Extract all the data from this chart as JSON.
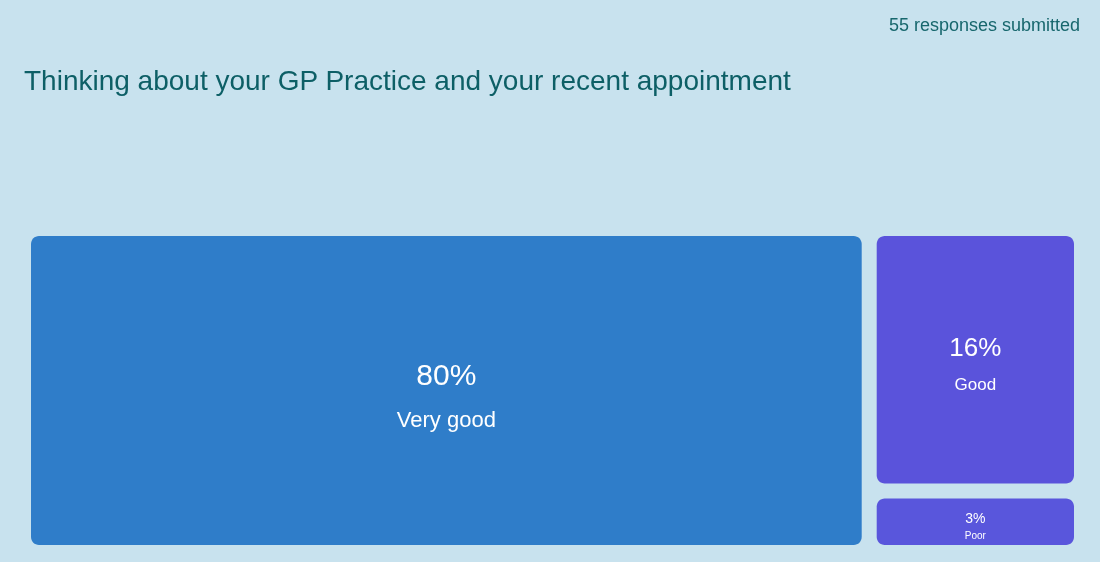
{
  "chart_data": {
    "type": "other",
    "title": "Thinking about your GP Practice and your recent appointment",
    "annotations": [
      "55 responses submitted"
    ],
    "categories": [
      "Very good",
      "Good",
      "Poor"
    ],
    "values": [
      80,
      16,
      3
    ],
    "value_labels": [
      "80%",
      "16%",
      "3%"
    ],
    "colors": [
      "#2f7dc9",
      "#5a53db",
      "#5956dc"
    ]
  }
}
